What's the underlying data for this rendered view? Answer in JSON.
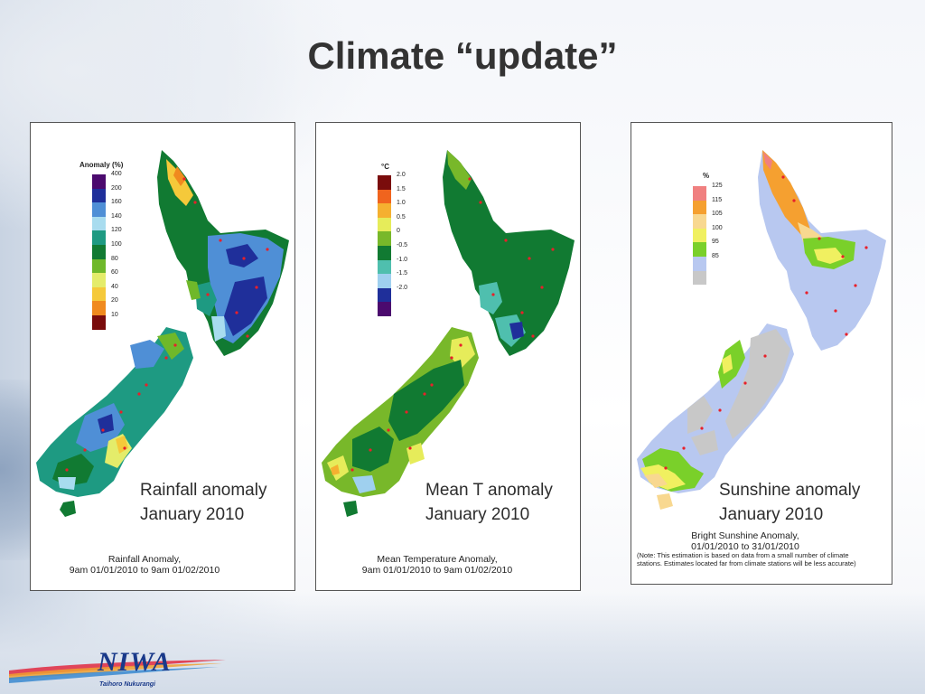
{
  "slide": {
    "title": "Climate “update”"
  },
  "panels": {
    "rainfall": {
      "legend_title": "Anomaly (%)",
      "legend": [
        {
          "label": "400",
          "color": "#4b0a6e"
        },
        {
          "label": "200",
          "color": "#1f2f9a"
        },
        {
          "label": "160",
          "color": "#4f8fd6"
        },
        {
          "label": "140",
          "color": "#a8dcef"
        },
        {
          "label": "120",
          "color": "#1e9a82"
        },
        {
          "label": "100",
          "color": "#117a32"
        },
        {
          "label": "80",
          "color": "#6fb82a"
        },
        {
          "label": "60",
          "color": "#e4ec6a"
        },
        {
          "label": "40",
          "color": "#f5c93a"
        },
        {
          "label": "20",
          "color": "#f08a1e"
        },
        {
          "label": "10",
          "color": "#7a0c0c"
        }
      ],
      "caption_line1": "Rainfall anomaly",
      "caption_line2": "January 2010",
      "footer_line1": "Rainfall Anomaly,",
      "footer_line2": "9am 01/01/2010 to 9am 01/02/2010"
    },
    "temperature": {
      "legend_title": "°C",
      "legend": [
        {
          "label": "2.0",
          "color": "#7a0c0c"
        },
        {
          "label": "1.5",
          "color": "#f0641e"
        },
        {
          "label": "1.0",
          "color": "#f5b030"
        },
        {
          "label": "0.5",
          "color": "#e6ec5a"
        },
        {
          "label": "0",
          "color": "#78b82a"
        },
        {
          "label": "-0.5",
          "color": "#117a32"
        },
        {
          "label": "-1.0",
          "color": "#4fbfae"
        },
        {
          "label": "-1.5",
          "color": "#9fd0ef"
        },
        {
          "label": "-2.0",
          "color": "#1f2f9a"
        },
        {
          "label": "",
          "color": "#4b0a6e"
        }
      ],
      "caption_line1": "Mean T anomaly",
      "caption_line2": "January 2010",
      "footer_line1": "Mean Temperature Anomaly,",
      "footer_line2": "9am 01/01/2010 to 9am 01/02/2010"
    },
    "sunshine": {
      "legend_title": "%",
      "legend": [
        {
          "label": "125",
          "color": "#f08080"
        },
        {
          "label": "115",
          "color": "#f5a030"
        },
        {
          "label": "105",
          "color": "#f8d890"
        },
        {
          "label": "100",
          "color": "#f0f060"
        },
        {
          "label": "95",
          "color": "#7ad02a"
        },
        {
          "label": "85",
          "color": "#b8c8f0"
        },
        {
          "label": "",
          "color": "#c8c8c8"
        }
      ],
      "caption_line1": "Sunshine anomaly",
      "caption_line2": "January 2010",
      "footer_line1": "Bright Sunshine Anomaly,",
      "footer_line2": "01/01/2010 to 31/01/2010",
      "footer_note1": "(Note: This estimation is based on data from a small number of climate",
      "footer_note2": "stations. Estimates located far from climate stations will be less accurate)"
    }
  },
  "logo": {
    "name": "NIWA",
    "tagline": "Taihoro Nukurangi"
  }
}
